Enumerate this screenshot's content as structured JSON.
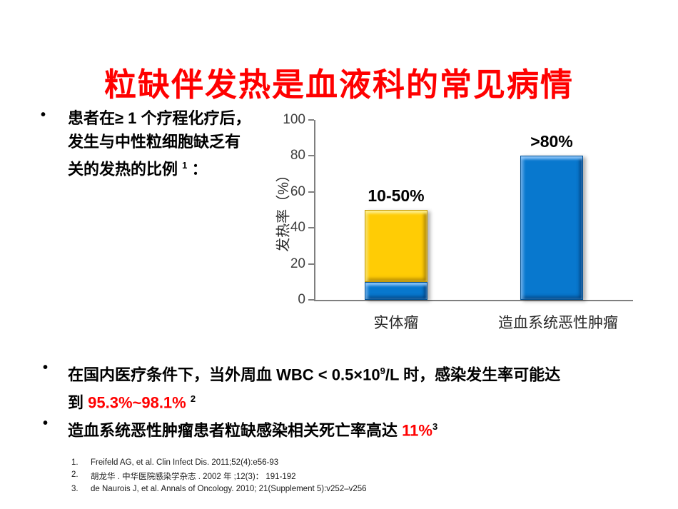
{
  "title": "粒缺伴发热是血液科的常见病情",
  "bullet_char": "•",
  "bullets": {
    "b1": {
      "line1": "患者在≥ 1 个疗程化疗后，",
      "line2": "发生与中性粒细胞缺乏有",
      "line3": "关的发热的比例 ",
      "sup": "1",
      "tail": " ："
    },
    "b2": {
      "line1a": "在国内医疗条件下，当外周血 WBC < 0.5×10",
      "sup9": "9",
      "line1b": "/L 时，感染发生率可能达",
      "line2a": "到 ",
      "highlight": "95.3%~98.1%",
      "gap": " ",
      "sup2": "2"
    },
    "b3": {
      "text": "造血系统恶性肿瘤患者粒缺感染相关死亡率高达 ",
      "highlight": "11%",
      "sup3": "3"
    }
  },
  "chart_data": {
    "type": "bar",
    "title": "",
    "ylabel": "发热率（%）",
    "xlabel": "",
    "ylim": [
      0,
      100
    ],
    "yticks": [
      0,
      20,
      40,
      60,
      80,
      100
    ],
    "grid": false,
    "legend": "none",
    "categories": [
      "实体瘤",
      "造血系统恶性肿瘤"
    ],
    "bars": [
      {
        "category": "实体瘤",
        "label": "10-50%",
        "segments": [
          {
            "from": 0,
            "to": 10,
            "tone": "blue",
            "color": "#0878CE"
          },
          {
            "from": 10,
            "to": 50,
            "tone": "yellow",
            "color": "#FFCC05"
          }
        ]
      },
      {
        "category": "造血系统恶性肿瘤",
        "label": ">80%",
        "segments": [
          {
            "from": 0,
            "to": 80,
            "tone": "blue",
            "color": "#0878CE"
          }
        ]
      }
    ],
    "colors": {
      "blue": "#0878CE",
      "yellow": "#FFCC05",
      "axis": "#7f7f7f",
      "accent_red": "#FF0000"
    }
  },
  "references": [
    {
      "num": "1.",
      "text": "Freifeld AG, et al. Clin Infect Dis. 2011;52(4):e56-93"
    },
    {
      "num": "2.",
      "text": "胡龙华 . 中华医院感染学杂志 . 2002 年 ;12(3)： 191-192"
    },
    {
      "num": "3.",
      "text": "de Naurois J, et al. Annals of Oncology. 2010; 21(Supplement 5):v252–v256"
    }
  ]
}
